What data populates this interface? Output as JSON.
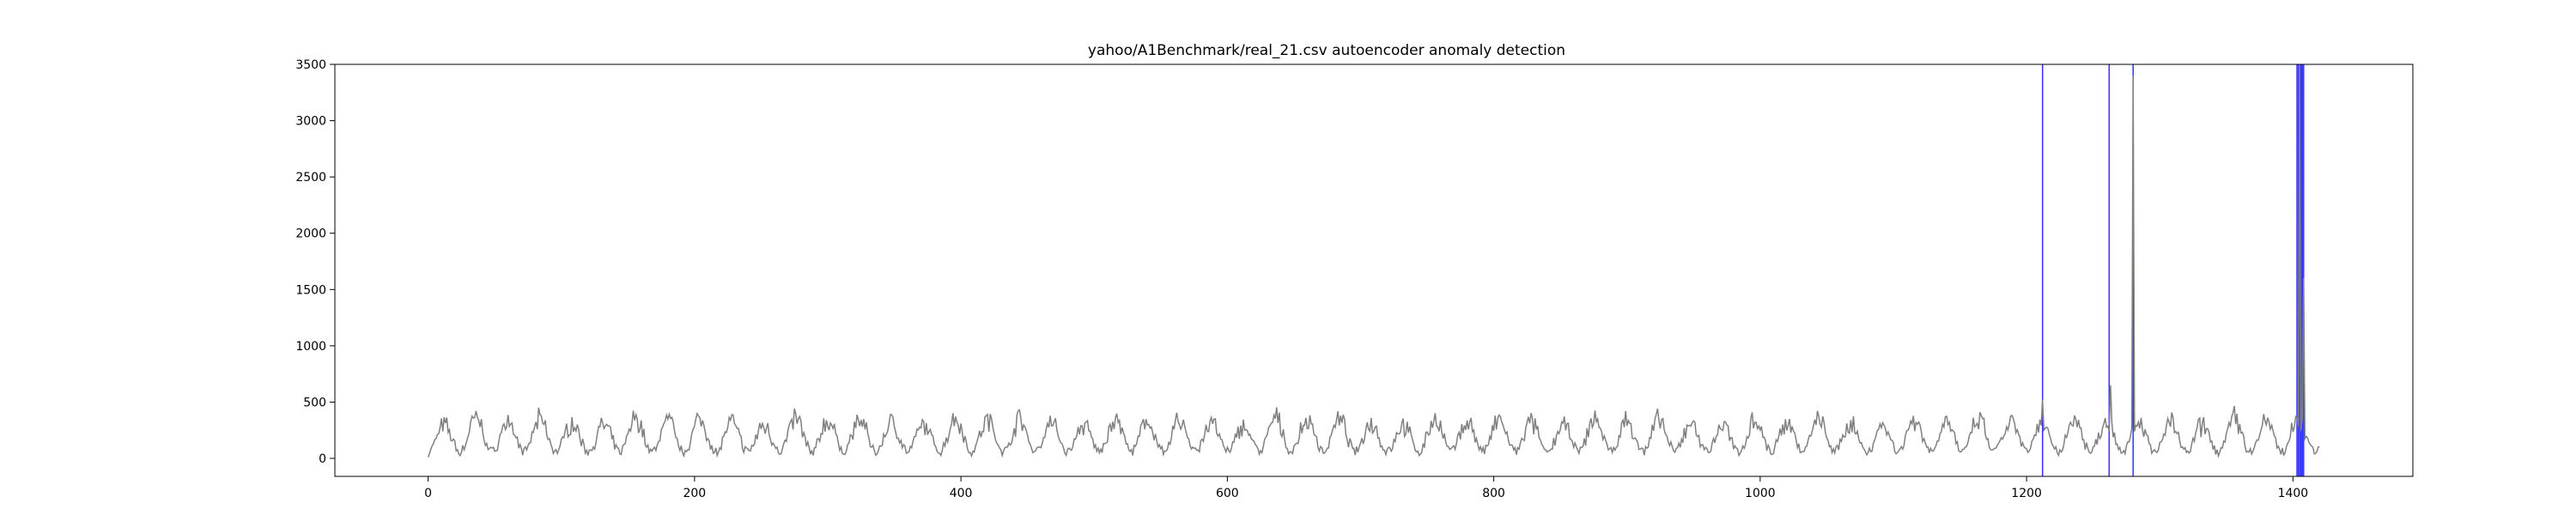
{
  "chart_data": {
    "type": "line",
    "title": "yahoo/A1Benchmark/real_21.csv autoencoder anomaly detection",
    "xlabel": "",
    "ylabel": "",
    "xlim": [
      -70,
      1490
    ],
    "ylim": [
      -160,
      3500
    ],
    "xticks": [
      0,
      200,
      400,
      600,
      800,
      1000,
      1200,
      1400
    ],
    "yticks": [
      0,
      500,
      1000,
      1500,
      2000,
      2500,
      3000,
      3500
    ],
    "grid": false,
    "legend": "none",
    "series": [
      {
        "color": "#808080",
        "x_start": 0,
        "x_end": 1420,
        "baseline_mean": 190,
        "period": 24,
        "typical_peaks": [
          420,
          500,
          470,
          480,
          450
        ],
        "spikes": [
          {
            "x": 1212,
            "y": 520
          },
          {
            "x": 1263,
            "y": 650
          },
          {
            "x": 1280,
            "y": 3400
          },
          {
            "x": 1405,
            "y": 3500
          },
          {
            "x": 1408,
            "y": 1600
          }
        ]
      }
    ],
    "anomaly_markers": {
      "color": "#3333ff",
      "x": [
        1212,
        1262,
        1280,
        1403,
        1404,
        1405,
        1406,
        1407,
        1408
      ]
    }
  }
}
